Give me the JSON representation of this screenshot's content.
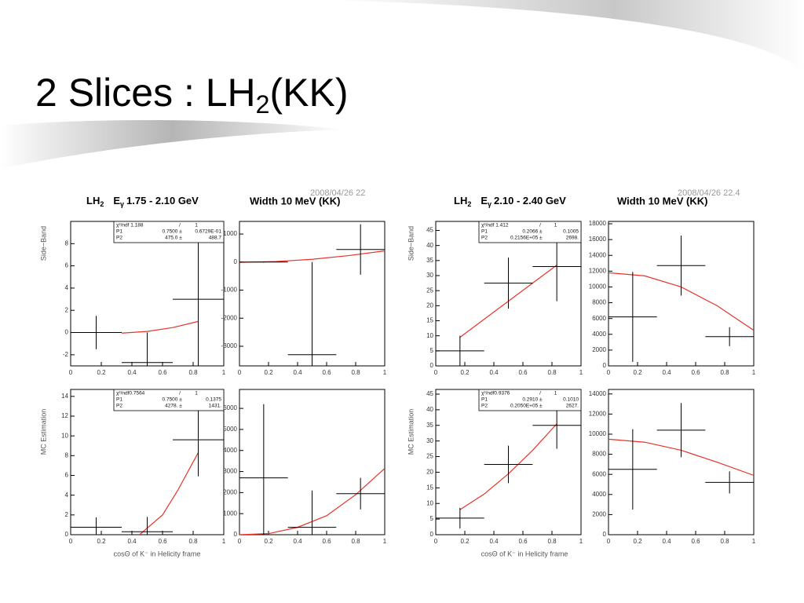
{
  "slide": {
    "title": "2 Slices : LH",
    "title_sub": "2",
    "title_end": "(KK)"
  },
  "groups": [
    {
      "lh": "LH",
      "lh_sub": "2",
      "e": "E",
      "e_sub": "γ",
      "range": "1.75 - 2.10 GeV",
      "width": "Width 10 MeV (KK)",
      "timestamp": "2008/04/26  22",
      "ylabel_top": "Side−Band",
      "ylabel_bottom": "MC Estimation",
      "xlabel": "cosΘ of K⁻ in Helicity frame"
    },
    {
      "lh": "LH",
      "lh_sub": "2",
      "e": "E",
      "e_sub": "γ",
      "range": "2.10 - 2.40 GeV",
      "width": "Width 10 MeV (KK)",
      "timestamp": "2008/04/26  22.4",
      "ylabel_top": "Side−Band",
      "ylabel_bottom": "MC Estimation",
      "xlabel": "cosΘ of K⁻ in Helicity frame"
    }
  ],
  "chart_data": [
    {
      "type": "errorbar",
      "xlim": [
        0,
        1
      ],
      "xticks": [
        0,
        0.2,
        0.4,
        0.6,
        0.8,
        1
      ],
      "ylim": [
        -3,
        10
      ],
      "yticks": [
        -2,
        0,
        2,
        4,
        6,
        8
      ],
      "color": "#000000",
      "x": [
        0.1667,
        0.5,
        0.8333
      ],
      "xerr": [
        0.1667,
        0.1667,
        0.1667
      ],
      "values": [
        0,
        -2.7,
        3.0
      ],
      "yerr": [
        1.5,
        2.7,
        7
      ],
      "fit": {
        "color": "#e8332a",
        "x": [
          0.333,
          0.5,
          0.667,
          0.833
        ],
        "values": [
          -0.05,
          0.1,
          0.45,
          1.0
        ]
      },
      "stats": [
        [
          "χ²/ndf 1.188",
          "/",
          "1"
        ],
        [
          "P1",
          "0.7500 ±",
          "0.6729E-01"
        ],
        [
          "P2",
          "475.0 ±",
          "488.7"
        ]
      ]
    },
    {
      "type": "errorbar",
      "xlim": [
        0,
        1
      ],
      "xticks": [
        0,
        0.2,
        0.4,
        0.6,
        0.8,
        1
      ],
      "ylim": [
        -3700,
        1450
      ],
      "yticks": [
        -3000,
        -2000,
        -1000,
        0,
        1000
      ],
      "color": "#000000",
      "x": [
        0.1667,
        0.5,
        0.8333
      ],
      "xerr": [
        0.1667,
        0.1667,
        0.1667
      ],
      "values": [
        0,
        -3300,
        450
      ],
      "yerr": [
        20,
        3300,
        900
      ],
      "fit": {
        "color": "#e8332a",
        "x": [
          0,
          0.25,
          0.5,
          0.75,
          1
        ],
        "values": [
          -10,
          20,
          100,
          230,
          400
        ]
      }
    },
    {
      "type": "errorbar",
      "xlim": [
        0,
        1
      ],
      "xticks": [
        0,
        0.2,
        0.4,
        0.6,
        0.8,
        1
      ],
      "ylim": [
        0,
        14.7
      ],
      "yticks": [
        0,
        2,
        4,
        6,
        8,
        10,
        12,
        14
      ],
      "color": "#000000",
      "x": [
        0.1667,
        0.5,
        0.8333
      ],
      "xerr": [
        0.1667,
        0.1667,
        0.1667
      ],
      "values": [
        0.75,
        0.3,
        9.6
      ],
      "yerr": [
        1,
        1.5,
        3.7
      ],
      "fit": {
        "color": "#e8332a",
        "x": [
          0.45,
          0.6,
          0.7,
          0.833
        ],
        "values": [
          0,
          2,
          4.5,
          8.3
        ]
      },
      "stats": [
        [
          "χ²/ndf0.7564",
          "/",
          "1"
        ],
        [
          "P1",
          "0.7500 ±",
          "0.1375"
        ],
        [
          "P2",
          "4278. ±",
          "1431."
        ]
      ]
    },
    {
      "type": "errorbar",
      "xlim": [
        0,
        1
      ],
      "xticks": [
        0,
        0.2,
        0.4,
        0.6,
        0.8,
        1
      ],
      "ylim": [
        0,
        6900
      ],
      "yticks": [
        0,
        1000,
        2000,
        3000,
        4000,
        5000,
        6000
      ],
      "color": "#000000",
      "x": [
        0.1667,
        0.5,
        0.8333
      ],
      "xerr": [
        0.1667,
        0.1667,
        0.1667
      ],
      "values": [
        2700,
        350,
        1950
      ],
      "yerr": [
        3500,
        1750,
        750
      ],
      "fit": {
        "color": "#e8332a",
        "x": [
          0,
          0.2,
          0.4,
          0.6,
          0.8,
          1
        ],
        "values": [
          0,
          50,
          350,
          900,
          1900,
          3150
        ]
      }
    },
    {
      "type": "errorbar",
      "xlim": [
        0,
        1
      ],
      "xticks": [
        0,
        0.2,
        0.4,
        0.6,
        0.8,
        1
      ],
      "ylim": [
        0,
        48
      ],
      "yticks": [
        0,
        5,
        10,
        15,
        20,
        25,
        30,
        35,
        40,
        45
      ],
      "color": "#000000",
      "x": [
        0.1667,
        0.5,
        0.8333
      ],
      "xerr": [
        0.1667,
        0.1667,
        0.1667
      ],
      "values": [
        5,
        27.5,
        33
      ],
      "yerr": [
        5,
        8.5,
        11.5
      ],
      "fit": {
        "color": "#e8332a",
        "x": [
          0.1667,
          0.8333
        ],
        "values": [
          9.5,
          33.5
        ]
      },
      "stats": [
        [
          "χ²/ndf 1.412",
          "/",
          "1"
        ],
        [
          "P1",
          "0.2066 ±",
          "0.1005"
        ],
        [
          "P2",
          "0.2156E+05 ±",
          "2698."
        ]
      ]
    },
    {
      "type": "errorbar",
      "xlim": [
        0,
        1
      ],
      "xticks": [
        0,
        0.2,
        0.4,
        0.6,
        0.8,
        1
      ],
      "ylim": [
        0,
        18300
      ],
      "yticks": [
        0,
        2000,
        4000,
        6000,
        8000,
        10000,
        12000,
        14000,
        16000,
        18000
      ],
      "color": "#000000",
      "x": [
        0.1667,
        0.5,
        0.8333
      ],
      "xerr": [
        0.1667,
        0.1667,
        0.1667
      ],
      "values": [
        6200,
        12700,
        3700
      ],
      "yerr": [
        5700,
        3800,
        1200
      ],
      "fit": {
        "color": "#e8332a",
        "x": [
          0,
          0.25,
          0.5,
          0.75,
          1
        ],
        "values": [
          11800,
          11400,
          10000,
          7600,
          4500
        ]
      }
    },
    {
      "type": "errorbar",
      "xlim": [
        0,
        1
      ],
      "xticks": [
        0,
        0.2,
        0.4,
        0.6,
        0.8,
        1
      ],
      "ylim": [
        0,
        46.5
      ],
      "yticks": [
        0,
        5,
        10,
        15,
        20,
        25,
        30,
        35,
        40,
        45
      ],
      "color": "#000000",
      "x": [
        0.1667,
        0.5,
        0.8333
      ],
      "xerr": [
        0.1667,
        0.1667,
        0.1667
      ],
      "values": [
        5.3,
        22.5,
        35
      ],
      "yerr": [
        3.3,
        6,
        7.5
      ],
      "fit": {
        "color": "#e8332a",
        "x": [
          0.1667,
          0.333,
          0.5,
          0.667,
          0.8333
        ],
        "values": [
          8,
          13,
          19.5,
          27,
          35.5
        ]
      },
      "stats": [
        [
          "χ²/ndf0.9376",
          "/",
          "1"
        ],
        [
          "P1",
          "0.2910 ±",
          "0.1010"
        ],
        [
          "P2",
          "0.2050E+05 ±",
          "2627."
        ]
      ]
    },
    {
      "type": "errorbar",
      "xlim": [
        0,
        1
      ],
      "xticks": [
        0,
        0.2,
        0.4,
        0.6,
        0.8,
        1
      ],
      "ylim": [
        0,
        14450
      ],
      "yticks": [
        0,
        2000,
        4000,
        6000,
        8000,
        10000,
        12000,
        14000
      ],
      "color": "#000000",
      "x": [
        0.1667,
        0.5,
        0.8333
      ],
      "xerr": [
        0.1667,
        0.1667,
        0.1667
      ],
      "values": [
        6500,
        10400,
        5200
      ],
      "yerr": [
        4000,
        2700,
        1100
      ],
      "fit": {
        "color": "#e8332a",
        "x": [
          0,
          0.25,
          0.5,
          0.75,
          1
        ],
        "values": [
          9500,
          9200,
          8400,
          7200,
          5900
        ]
      }
    }
  ]
}
